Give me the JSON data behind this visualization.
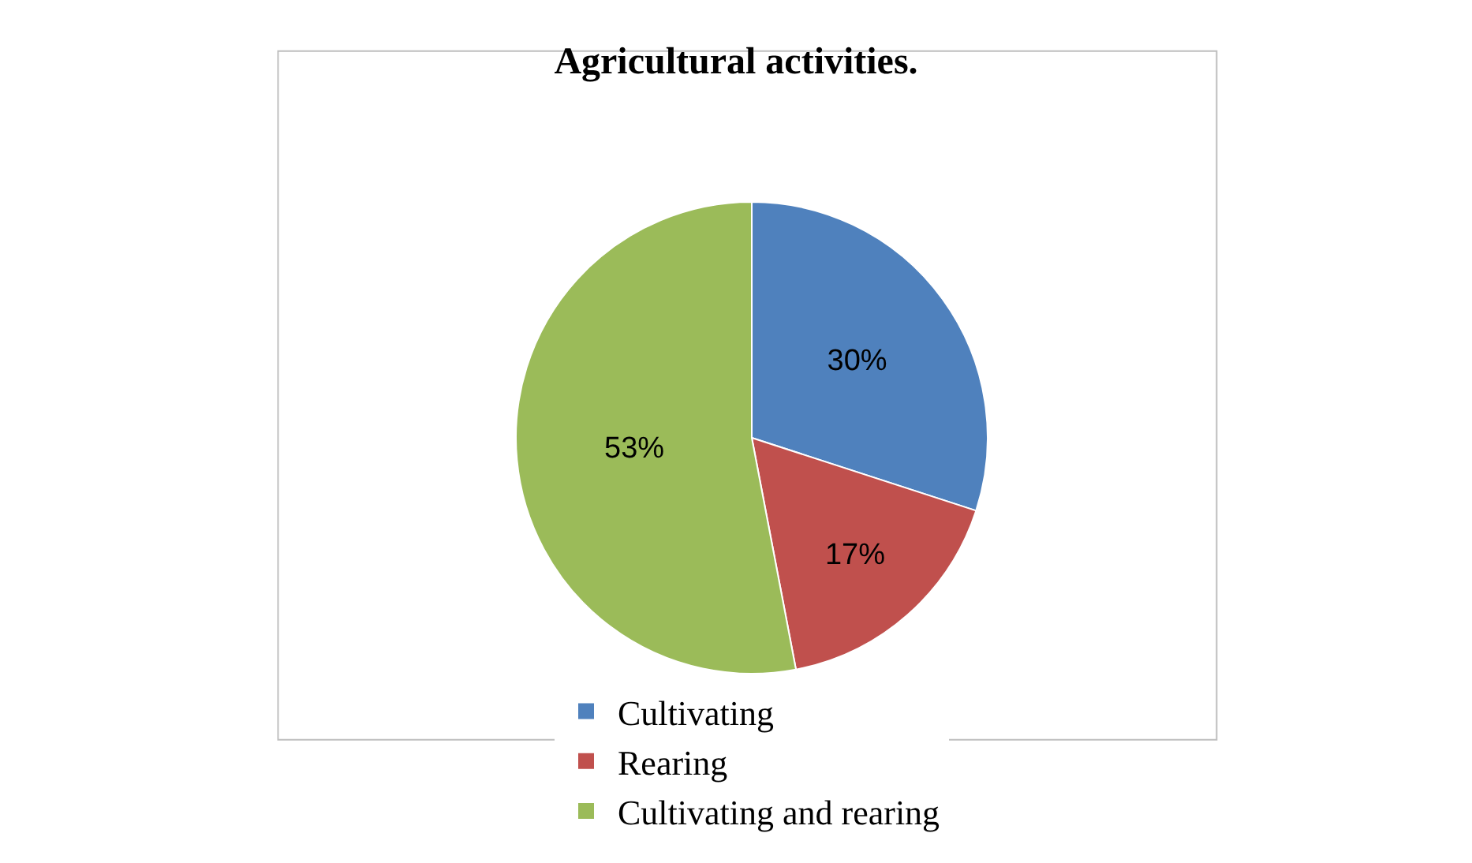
{
  "chart_data": {
    "type": "pie",
    "title": "Agricultural activities.",
    "categories": [
      "Cultivating",
      "Rearing",
      "Cultivating and rearing"
    ],
    "values": [
      30,
      17,
      53
    ],
    "colors": [
      "#4f81bd",
      "#c0504d",
      "#9bbb59"
    ],
    "value_labels": [
      "30%",
      "17%",
      "53%"
    ],
    "legend": "bottom"
  }
}
